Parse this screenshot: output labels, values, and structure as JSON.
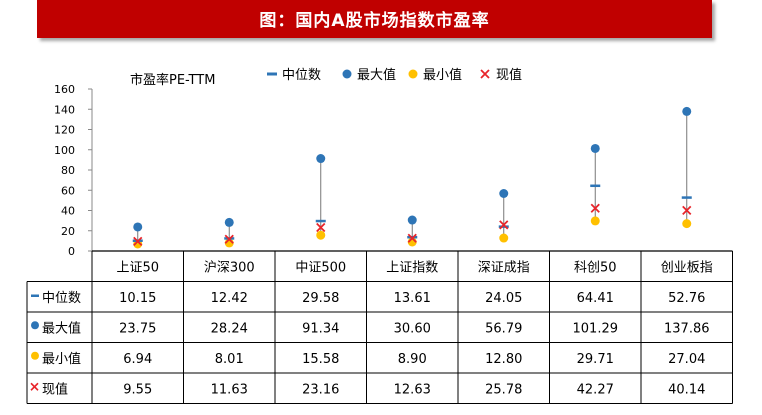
{
  "banner": {
    "title": "图：国内A股市场指数市盈率"
  },
  "colors": {
    "banner": "#c00000",
    "median": "#2e75b6",
    "max": "#2e75b6",
    "min": "#ffc000",
    "current": "#e8252b"
  },
  "chart_data": {
    "type": "scatter",
    "title": "",
    "ylabel": "市盈率PE-TTM",
    "ylim": [
      0,
      160
    ],
    "yticks": [
      0,
      20,
      40,
      60,
      80,
      100,
      120,
      140,
      160
    ],
    "grid": false,
    "legend_position": "top-right",
    "categories": [
      "上证50",
      "沪深300",
      "中证500",
      "上证指数",
      "深证成指",
      "科创50",
      "创业板指"
    ],
    "series": [
      {
        "name": "中位数",
        "marker": "dash",
        "values": [
          10.15,
          12.42,
          29.58,
          13.61,
          24.05,
          64.41,
          52.76
        ],
        "labels": [
          "10.15",
          "12.42",
          "29.58",
          "13.61",
          "24.05",
          "64.41",
          "52.76"
        ]
      },
      {
        "name": "最大值",
        "marker": "circle",
        "values": [
          23.75,
          28.24,
          91.34,
          30.6,
          56.79,
          101.29,
          137.86
        ],
        "labels": [
          "23.75",
          "28.24",
          "91.34",
          "30.60",
          "56.79",
          "101.29",
          "137.86"
        ]
      },
      {
        "name": "最小值",
        "marker": "circle",
        "values": [
          6.94,
          8.01,
          15.58,
          8.9,
          12.8,
          29.71,
          27.04
        ],
        "labels": [
          "6.94",
          "8.01",
          "15.58",
          "8.90",
          "12.80",
          "29.71",
          "27.04"
        ]
      },
      {
        "name": "现值",
        "marker": "cross",
        "values": [
          9.55,
          11.63,
          23.16,
          12.63,
          25.78,
          42.27,
          40.14
        ],
        "labels": [
          "9.55",
          "11.63",
          "23.16",
          "12.63",
          "25.78",
          "42.27",
          "40.14"
        ]
      }
    ]
  }
}
